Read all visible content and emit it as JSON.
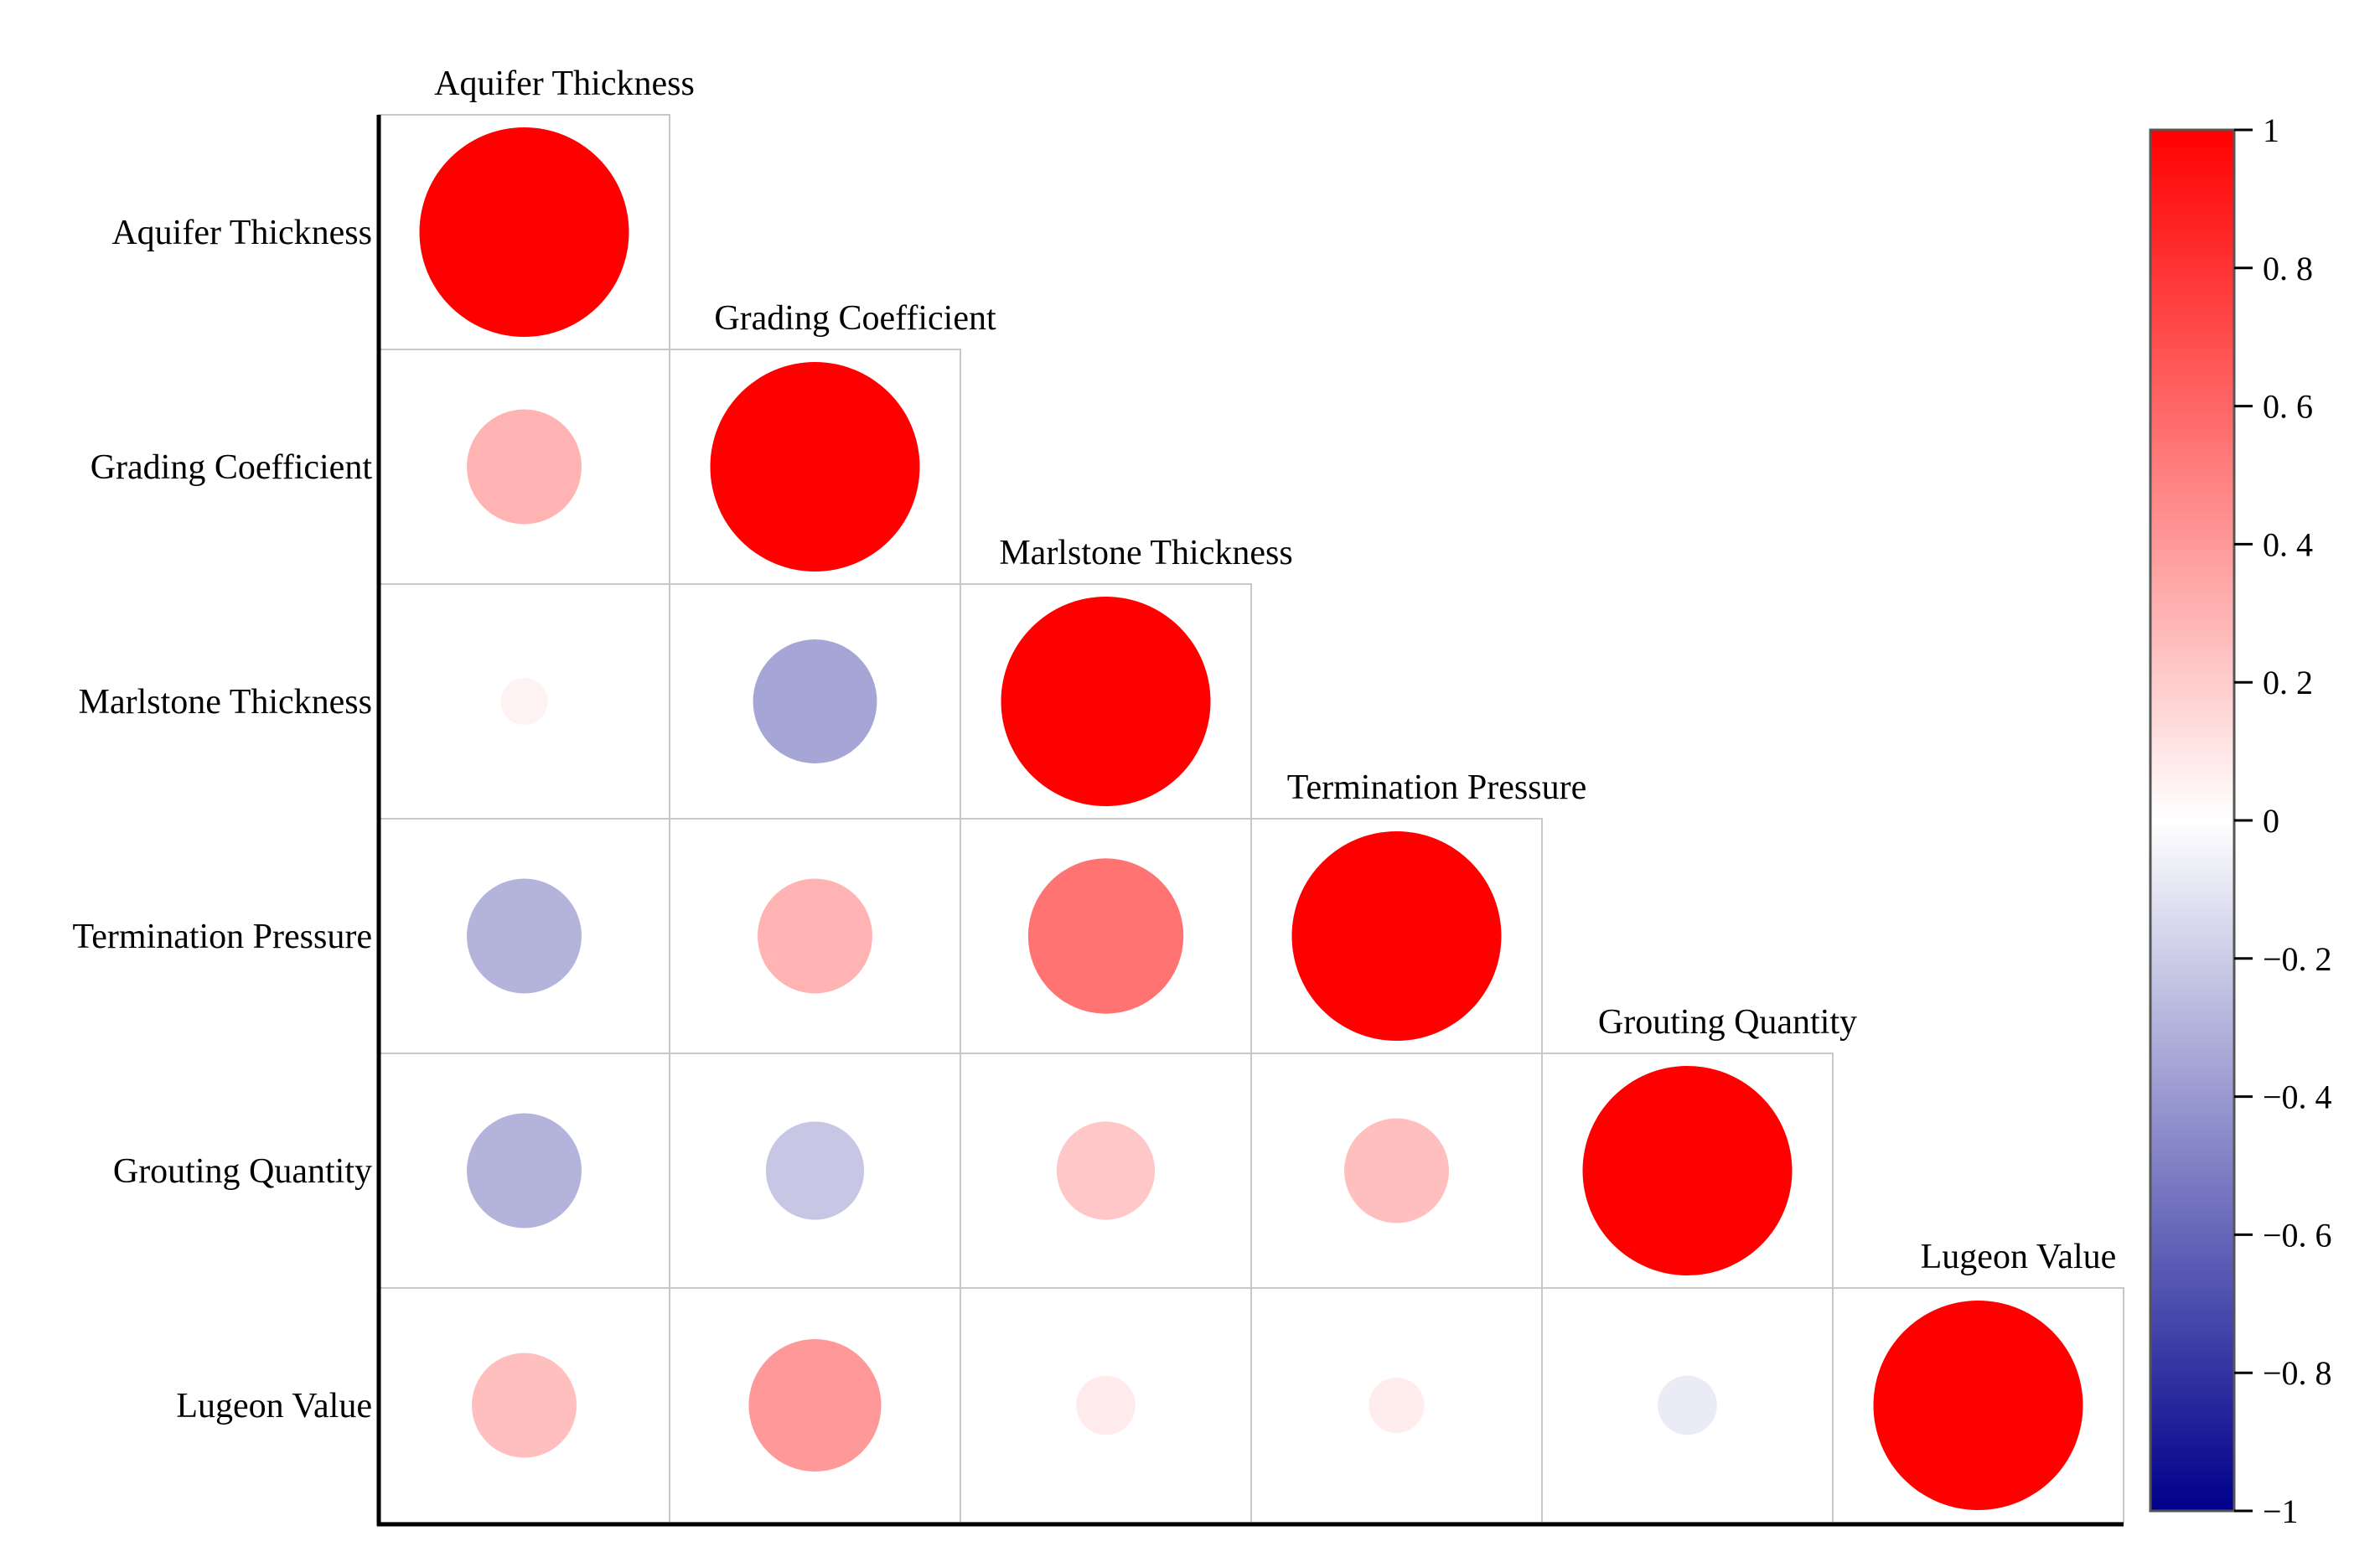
{
  "chart_data": {
    "type": "heatmap",
    "subtype": "correlation-circle-lower-triangle",
    "variables": [
      "Aquifer Thickness",
      "Grading Coefficient",
      "Marlstone Thickness",
      "Termination Pressure",
      "Grouting Quantity",
      "Lugeon Value"
    ],
    "matrix": [
      [
        1.0,
        0.3,
        0.05,
        -0.3,
        -0.3,
        0.25
      ],
      [
        0.3,
        1.0,
        -0.35,
        0.3,
        -0.22,
        0.4
      ],
      [
        0.05,
        -0.35,
        1.0,
        0.55,
        0.22,
        0.08
      ],
      [
        -0.3,
        0.3,
        0.55,
        1.0,
        0.25,
        0.07
      ],
      [
        -0.3,
        -0.22,
        0.22,
        0.25,
        1.0,
        -0.08
      ],
      [
        0.25,
        0.4,
        0.08,
        0.07,
        -0.08,
        1.0
      ]
    ],
    "colorbar": {
      "range": [
        -1,
        1
      ],
      "ticks": [
        "1",
        "0. 8",
        "0. 6",
        "0. 4",
        "0. 2",
        "0",
        "−0. 2",
        "−0. 4",
        "−0. 6",
        "−0. 8",
        "−1"
      ],
      "tick_values": [
        1,
        0.8,
        0.6,
        0.4,
        0.2,
        0,
        -0.2,
        -0.4,
        -0.6,
        -0.8,
        -1
      ],
      "colors": {
        "negative": "#00008b",
        "zero": "#ffffff",
        "positive": "#ff0000"
      }
    },
    "grid_color": "#c8c8c8",
    "axis_color": "#000000"
  }
}
